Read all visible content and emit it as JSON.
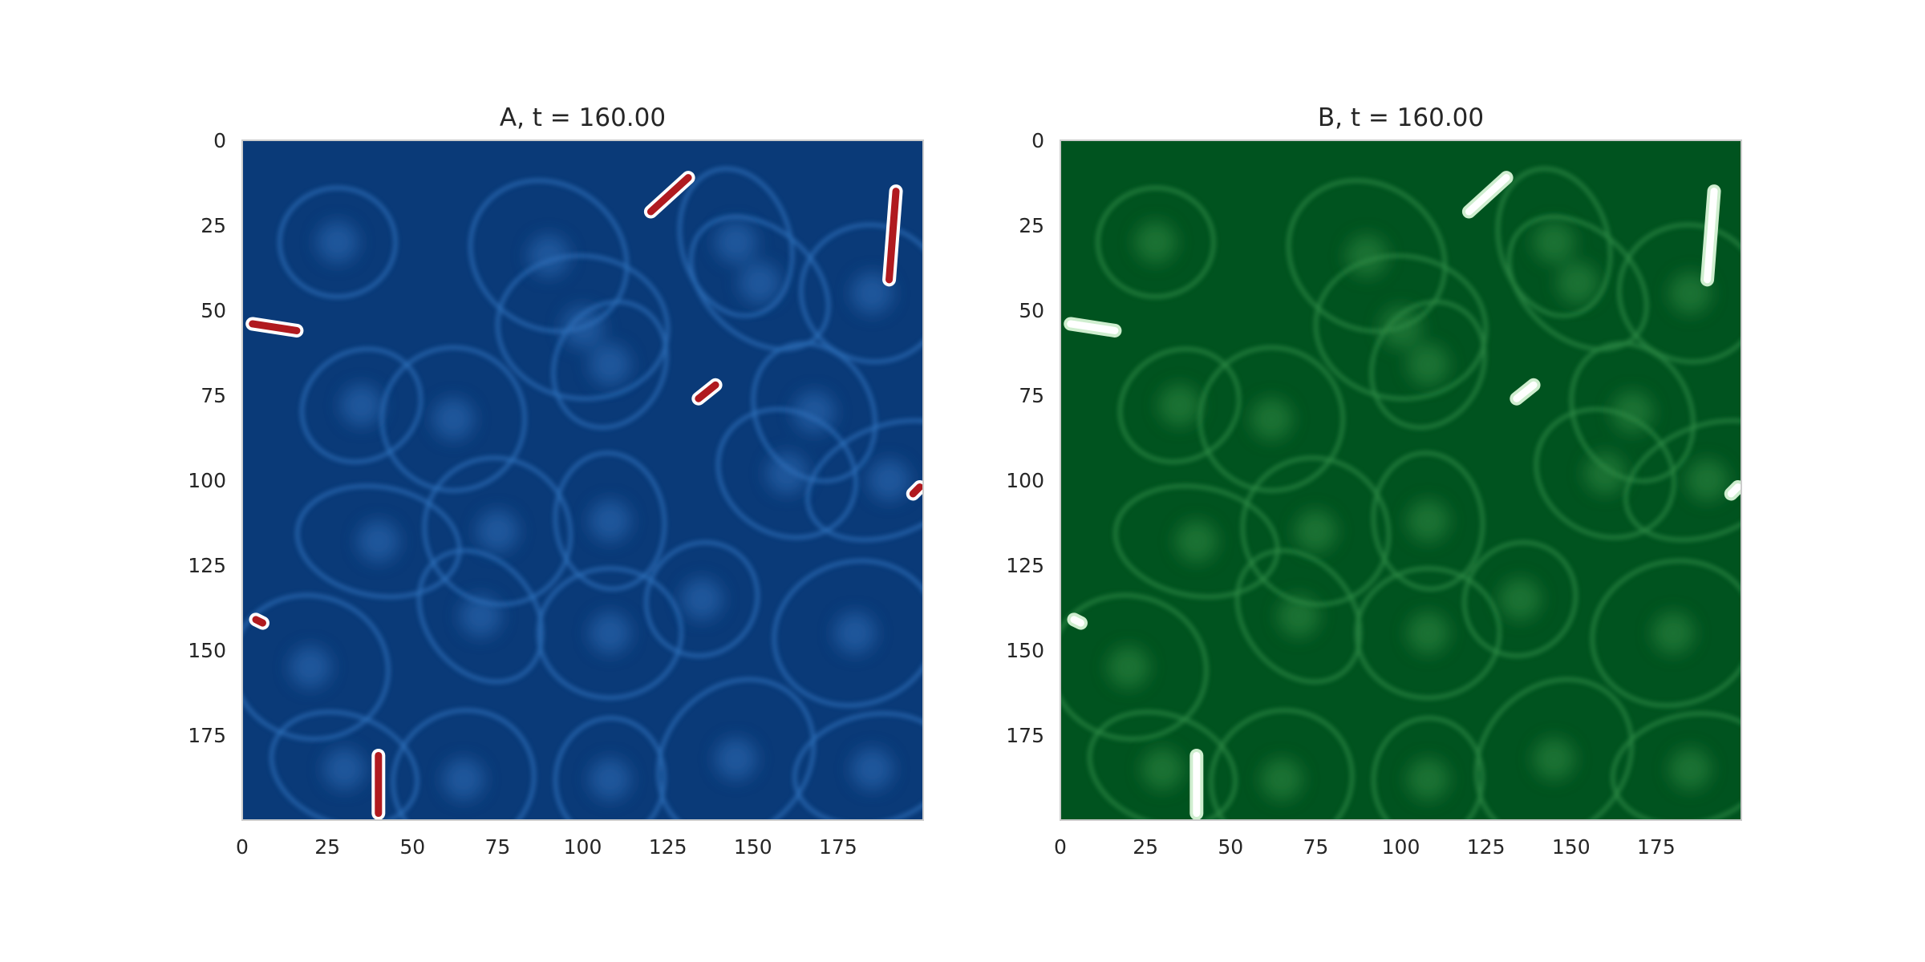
{
  "chart_data": [
    {
      "type": "heatmap",
      "title": "A, t = 160.00",
      "x_ticks": [
        0,
        25,
        50,
        75,
        100,
        125,
        150,
        175
      ],
      "y_ticks": [
        0,
        25,
        50,
        75,
        100,
        125,
        150,
        175
      ],
      "xlim": [
        0,
        200
      ],
      "ylim": [
        200,
        0
      ],
      "grid": false,
      "colormap": "RdBu",
      "colors": {
        "background": "#0a3a78",
        "membrane": "#2f6fb8",
        "spot": "#b01a1f",
        "halo": "#ffffff"
      },
      "hot_spots": [
        {
          "x": [
            120,
            131
          ],
          "y": [
            21,
            11
          ]
        },
        {
          "x": [
            190,
            192
          ],
          "y": [
            41,
            15
          ]
        },
        {
          "x": [
            3,
            16
          ],
          "y": [
            54,
            56
          ]
        },
        {
          "x": [
            134,
            139
          ],
          "y": [
            76,
            72
          ]
        },
        {
          "x": [
            197,
            199
          ],
          "y": [
            104,
            102
          ]
        },
        {
          "x": [
            4,
            6
          ],
          "y": [
            141,
            142
          ]
        },
        {
          "x": [
            40,
            40
          ],
          "y": [
            198,
            181
          ]
        }
      ]
    },
    {
      "type": "heatmap",
      "title": "B, t = 160.00",
      "x_ticks": [
        0,
        25,
        50,
        75,
        100,
        125,
        150,
        175
      ],
      "y_ticks": [
        0,
        25,
        50,
        75,
        100,
        125,
        150,
        175
      ],
      "xlim": [
        0,
        200
      ],
      "ylim": [
        200,
        0
      ],
      "grid": false,
      "colormap": "Greens",
      "colors": {
        "background": "#00531f",
        "membrane": "#2f8a45",
        "spot": "#ffffff",
        "halo": "#cfeecf"
      },
      "hot_spots": [
        {
          "x": [
            120,
            131
          ],
          "y": [
            21,
            11
          ]
        },
        {
          "x": [
            190,
            192
          ],
          "y": [
            41,
            15
          ]
        },
        {
          "x": [
            3,
            16
          ],
          "y": [
            54,
            56
          ]
        },
        {
          "x": [
            134,
            139
          ],
          "y": [
            76,
            72
          ]
        },
        {
          "x": [
            197,
            199
          ],
          "y": [
            104,
            102
          ]
        },
        {
          "x": [
            4,
            6
          ],
          "y": [
            141,
            142
          ]
        },
        {
          "x": [
            40,
            40
          ],
          "y": [
            198,
            181
          ]
        }
      ]
    }
  ]
}
